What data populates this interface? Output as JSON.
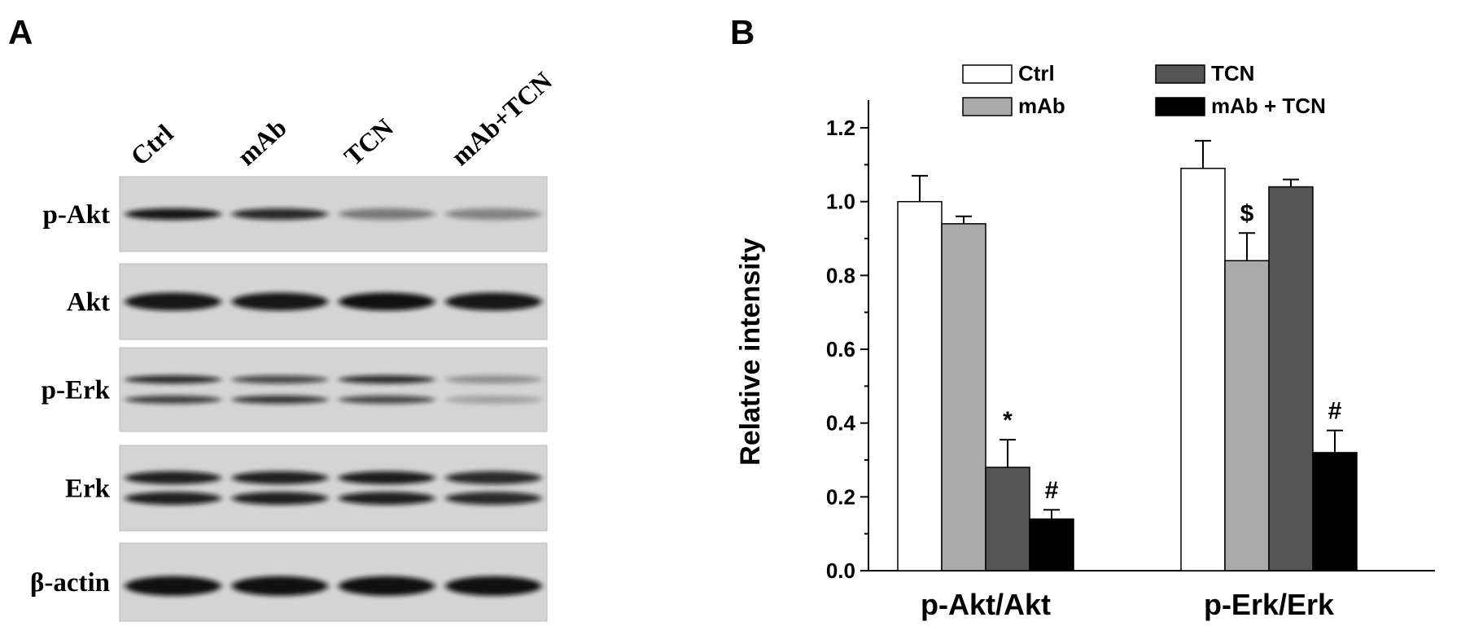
{
  "blot": {
    "panel": "A",
    "lanes": [
      "Ctrl",
      "mAb",
      "TCN",
      "mAb+TCN"
    ],
    "rows": [
      "p-Akt",
      "Akt",
      "p-Erk",
      "Erk",
      "β-actin"
    ]
  },
  "chart_data": {
    "type": "bar",
    "panel": "B",
    "ylabel": "Relative intensity",
    "categories": [
      "p-Akt/Akt",
      "p-Erk/Erk"
    ],
    "series": [
      {
        "name": "Ctrl",
        "color": "#ffffff",
        "values": [
          1.0,
          1.09
        ],
        "errors": [
          0.07,
          0.075
        ],
        "annotations": [
          null,
          null
        ]
      },
      {
        "name": "mAb",
        "color": "#aaaaaa",
        "values": [
          0.94,
          0.84
        ],
        "errors": [
          0.02,
          0.075
        ],
        "annotations": [
          null,
          "$"
        ]
      },
      {
        "name": "TCN",
        "color": "#555555",
        "values": [
          0.28,
          1.04
        ],
        "errors": [
          0.075,
          0.02
        ],
        "annotations": [
          "*",
          null
        ]
      },
      {
        "name": "mAb + TCN",
        "color": "#000000",
        "values": [
          0.14,
          0.32
        ],
        "errors": [
          0.025,
          0.06
        ],
        "annotations": [
          "#",
          "#"
        ]
      }
    ],
    "ylim": [
      0,
      1.275
    ],
    "yticks": [
      {
        "value": 0,
        "label": "0.0"
      },
      {
        "value": 0.2,
        "label": "0.2"
      },
      {
        "value": 0.4,
        "label": "0.4"
      },
      {
        "value": 0.6,
        "label": "0.6"
      },
      {
        "value": 0.8,
        "label": "0.8"
      },
      {
        "value": 1,
        "label": "1.0"
      },
      {
        "value": 1.2,
        "label": "1.2"
      }
    ],
    "minor_yticks": [
      0.1,
      0.3,
      0.5,
      0.7,
      0.9,
      1.1
    ],
    "grid": false
  }
}
